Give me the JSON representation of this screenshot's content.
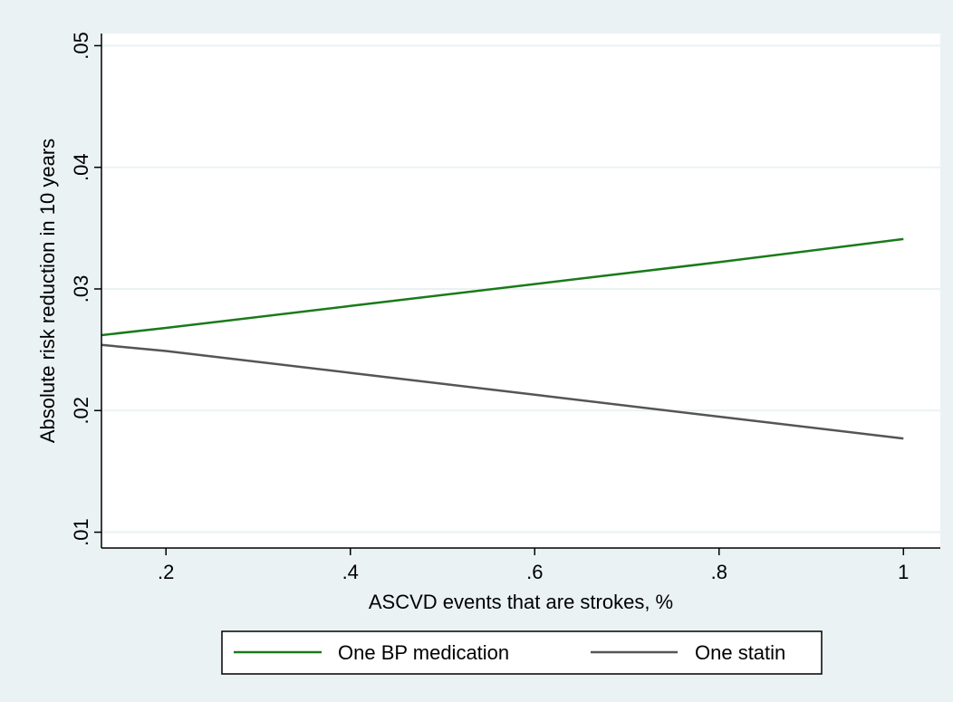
{
  "chart_data": {
    "type": "line",
    "xlabel": "ASCVD events that are strokes, %",
    "ylabel": "Absolute risk reduction in 10 years",
    "xlim": [
      0.13,
      1.04
    ],
    "ylim": [
      0.0087,
      0.051
    ],
    "xticks": [
      0.2,
      0.4,
      0.6,
      0.8,
      1.0
    ],
    "xtick_labels": [
      ".2",
      ".4",
      ".6",
      ".8",
      "1"
    ],
    "yticks": [
      0.01,
      0.02,
      0.03,
      0.04,
      0.05
    ],
    "ytick_labels": [
      ".01",
      ".02",
      ".03",
      ".04",
      ".05"
    ],
    "grid": "horizontal",
    "legend_position": "bottom",
    "series": [
      {
        "name": "One BP medication",
        "color": "#1a7a1a",
        "x": [
          0.13,
          0.2,
          0.4,
          0.6,
          0.8,
          1.0
        ],
        "y": [
          0.0262,
          0.0268,
          0.0286,
          0.0304,
          0.0322,
          0.0341
        ]
      },
      {
        "name": "One statin",
        "color": "#555555",
        "x": [
          0.13,
          0.2,
          0.4,
          0.6,
          0.8,
          1.0
        ],
        "y": [
          0.0254,
          0.0249,
          0.0231,
          0.0213,
          0.0195,
          0.0177
        ]
      }
    ],
    "colors": {
      "background": "#eaf2f3",
      "plot_area": "#ffffff",
      "grid": "#eaf2f3",
      "axis": "#000000"
    }
  }
}
